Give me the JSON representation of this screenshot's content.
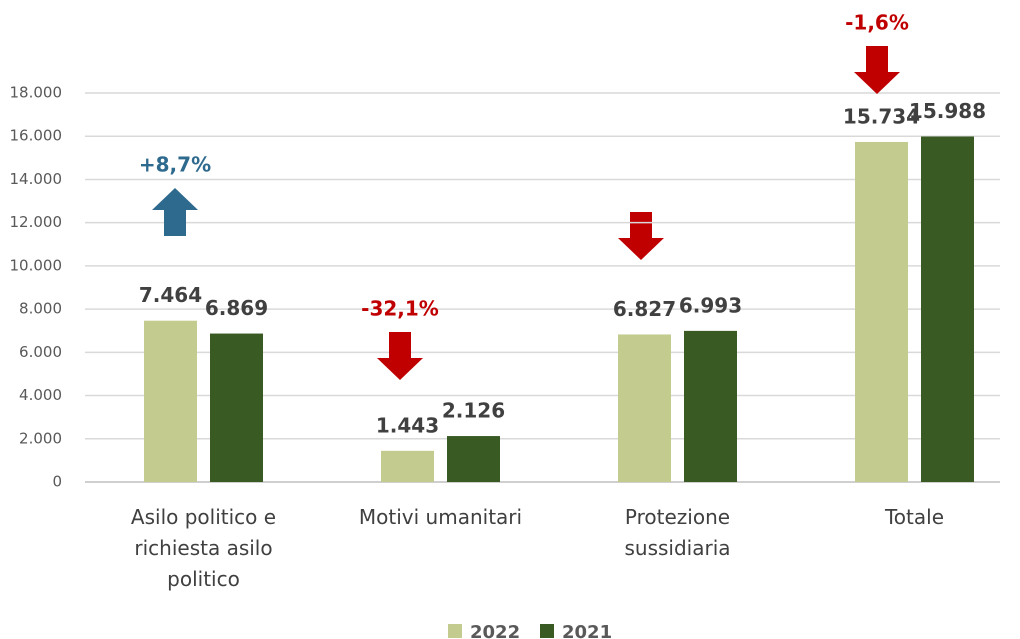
{
  "chart_data": {
    "type": "bar",
    "categories": [
      "Asilo politico e richiesta asilo politico",
      "Motivi umanitari",
      "Protezione sussidiaria",
      "Totale"
    ],
    "series": [
      {
        "name": "2022",
        "color": "#c3cc8e",
        "values": [
          7464,
          1443,
          6827,
          15734
        ],
        "value_labels": [
          "7.464",
          "1.443",
          "6.827",
          "15.734"
        ]
      },
      {
        "name": "2021",
        "color": "#3a5a24",
        "values": [
          6869,
          2126,
          6993,
          15988
        ],
        "value_labels": [
          "6.869",
          "2.126",
          "6.993",
          "15.988"
        ]
      }
    ],
    "ylim": [
      0,
      18000
    ],
    "yticks": [
      0,
      {
        "value": 2000,
        "label": "2.000"
      },
      {
        "value": 4000,
        "label": "4.000"
      },
      {
        "value": 6000,
        "label": "6.000"
      },
      {
        "value": 8000,
        "label": "8.000"
      },
      {
        "value": 10000,
        "label": "10.000"
      },
      {
        "value": 12000,
        "label": "12.000"
      },
      {
        "value": 14000,
        "label": "14.000"
      },
      {
        "value": 16000,
        "label": "16.000"
      },
      {
        "value": 18000,
        "label": "18.000"
      }
    ],
    "grid": true,
    "legend": "bottom",
    "annotations": [
      {
        "text": "+8,7%",
        "category": 0,
        "direction": "up",
        "color": "#2e6a8e"
      },
      {
        "text": "-32,1%",
        "category": 1,
        "direction": "down",
        "color": "#c00000"
      },
      {
        "text": "-1,6%",
        "category": 3,
        "direction": "down",
        "color": "#c00000"
      }
    ]
  }
}
